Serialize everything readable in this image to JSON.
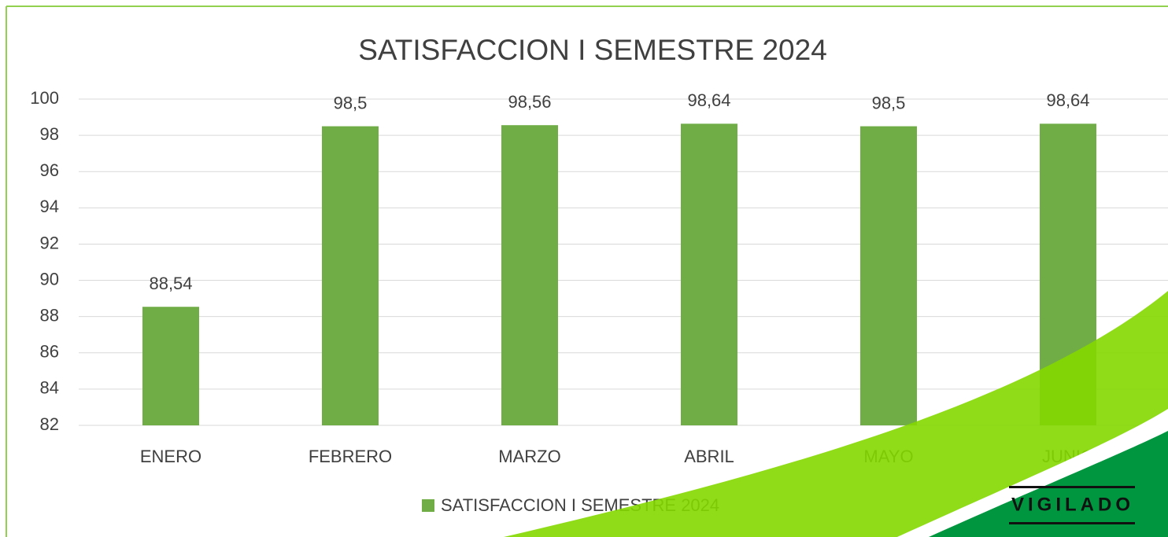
{
  "chart_data": {
    "type": "bar",
    "title": "SATISFACCION I SEMESTRE 2024",
    "categories": [
      "ENERO",
      "FEBRERO",
      "MARZO",
      "ABRIL",
      "MAYO",
      "JUNIO"
    ],
    "series": [
      {
        "name": "SATISFACCION I SEMESTRE 2024",
        "color": "#70ad47",
        "values": [
          88.54,
          98.5,
          98.56,
          98.64,
          98.5,
          98.64
        ],
        "value_labels": [
          "88,54",
          "98,5",
          "98,56",
          "98,64",
          "98,5",
          "98,64"
        ]
      }
    ],
    "ylim": [
      82,
      100
    ],
    "yticks": [
      82,
      84,
      86,
      88,
      90,
      92,
      94,
      96,
      98,
      100
    ],
    "grid": true,
    "legend": "bottom",
    "watermark": "VIGILADO"
  }
}
